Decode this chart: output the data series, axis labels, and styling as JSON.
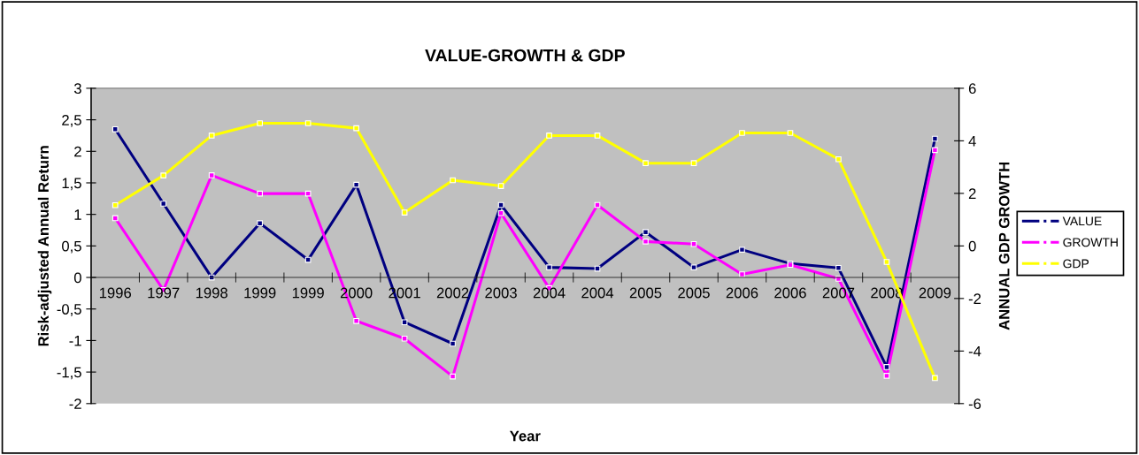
{
  "chart_data": {
    "type": "line",
    "title": "VALUE-GROWTH & GDP",
    "xlabel": "Year",
    "ylabel": "Risk-adjusted Annual Return",
    "y2label": "ANNUAL GDP GROWTH",
    "categories": [
      "1996",
      "1997",
      "1998",
      "1999",
      "1999",
      "2000",
      "2001",
      "2002",
      "2003",
      "2004",
      "2004",
      "2005",
      "2005",
      "2006",
      "2006",
      "2007",
      "2008",
      "2009"
    ],
    "series": [
      {
        "name": "VALUE",
        "color": "#000080",
        "values": [
          2.35,
          1.17,
          0.0,
          0.86,
          0.28,
          1.47,
          -0.71,
          -1.05,
          1.15,
          0.16,
          0.14,
          0.72,
          0.16,
          0.44,
          0.22,
          0.15,
          -1.42,
          2.2
        ]
      },
      {
        "name": "GROWTH",
        "color": "#ff00ff",
        "values": [
          0.94,
          -0.2,
          1.62,
          1.33,
          1.33,
          -0.69,
          -0.97,
          -1.57,
          1.02,
          -0.17,
          1.15,
          0.57,
          0.53,
          0.05,
          0.2,
          -0.02,
          -1.56,
          2.02
        ]
      },
      {
        "name": "GDP",
        "color": "#ffff00",
        "axis": "y2",
        "values": [
          1.55,
          2.68,
          4.2,
          4.67,
          4.67,
          4.48,
          1.27,
          2.5,
          2.28,
          4.2,
          4.2,
          3.15,
          3.15,
          4.3,
          4.3,
          3.3,
          -0.61,
          -5.03
        ]
      }
    ],
    "ylim": [
      -2,
      3
    ],
    "yticks": [
      -2,
      {
        "value": -1.5,
        "label": "-1,5"
      },
      -1,
      {
        "value": -0.5,
        "label": "-0,5"
      },
      0,
      {
        "value": 0.5,
        "label": "0,5"
      },
      1,
      {
        "value": 1.5,
        "label": "1,5"
      },
      2,
      {
        "value": 2.5,
        "label": "2,5"
      },
      3
    ],
    "y2lim": [
      -6,
      6
    ],
    "y2ticks": [
      -6,
      -4,
      -2,
      0,
      2,
      4,
      6
    ],
    "marker": "square",
    "grid": false,
    "legend": "right"
  }
}
